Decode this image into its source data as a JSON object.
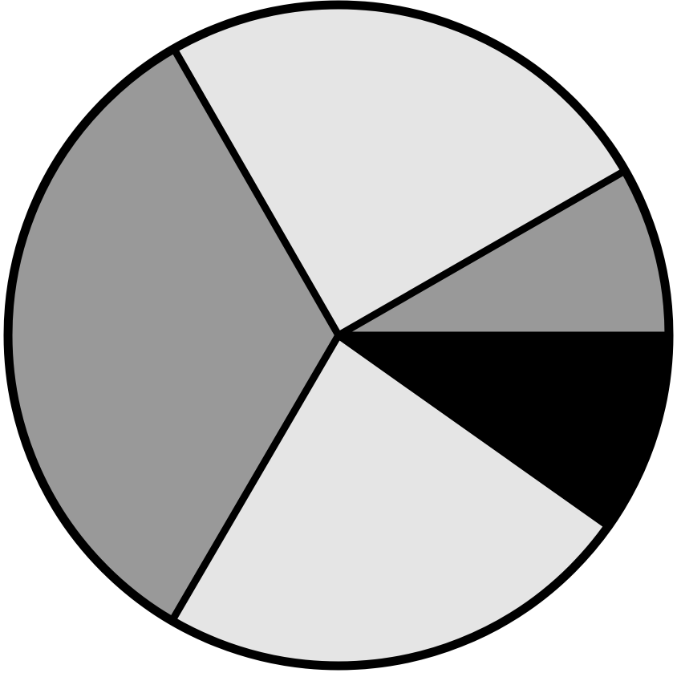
{
  "chart_data": {
    "type": "pie",
    "title": "",
    "start_angle_deg": 0,
    "direction": "counterclockwise",
    "slices": [
      {
        "value": 8.3,
        "color": "#999999"
      },
      {
        "value": 25,
        "color": "#e5e5e5"
      },
      {
        "value": 33.3,
        "color": "#999999"
      },
      {
        "value": 23.6,
        "color": "#e5e5e5"
      },
      {
        "value": 9.8,
        "color": "#000000"
      }
    ],
    "border_color": "#000000"
  }
}
